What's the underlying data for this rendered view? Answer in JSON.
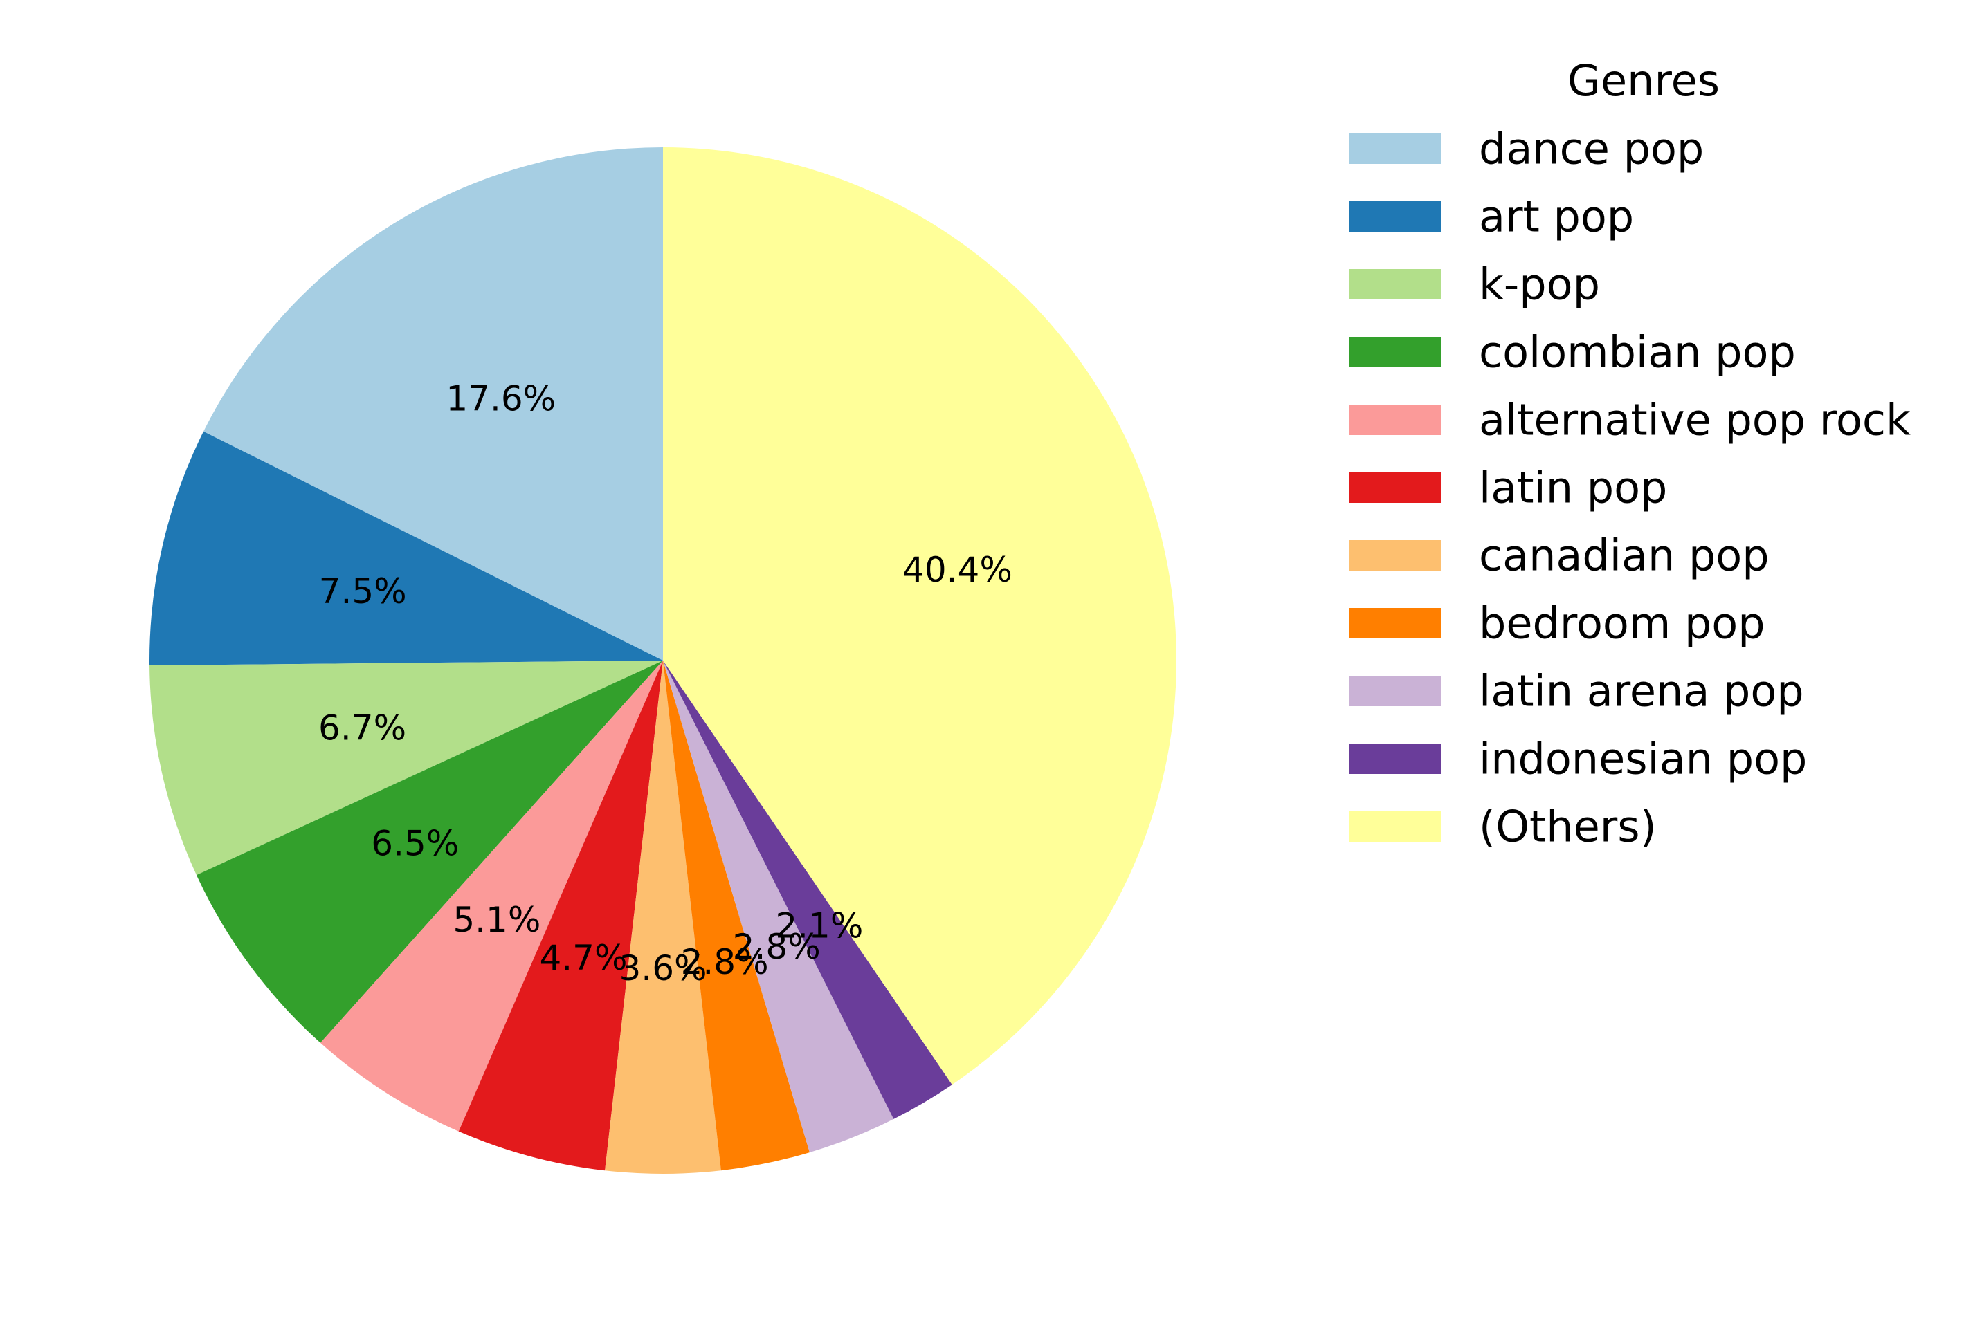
{
  "chart_data": {
    "type": "pie",
    "legend_title": "Genres",
    "legend_position": "right",
    "start_angle_deg": 90,
    "direction": "counterclockwise",
    "slices": [
      {
        "label": "dance pop",
        "value": 17.6,
        "pct_label": "17.6%",
        "color": "#a6cee3"
      },
      {
        "label": "art pop",
        "value": 7.5,
        "pct_label": "7.5%",
        "color": "#1f78b4"
      },
      {
        "label": "k-pop",
        "value": 6.7,
        "pct_label": "6.7%",
        "color": "#b2df8a"
      },
      {
        "label": "colombian pop",
        "value": 6.5,
        "pct_label": "6.5%",
        "color": "#33a02c"
      },
      {
        "label": "alternative pop rock",
        "value": 5.1,
        "pct_label": "5.1%",
        "color": "#fb9a99"
      },
      {
        "label": "latin pop",
        "value": 4.7,
        "pct_label": "4.7%",
        "color": "#e31a1c"
      },
      {
        "label": "canadian pop",
        "value": 3.6,
        "pct_label": "3.6%",
        "color": "#fdbf6f"
      },
      {
        "label": "bedroom pop",
        "value": 2.8,
        "pct_label": "2.8%",
        "color": "#ff7f00"
      },
      {
        "label": "latin arena pop",
        "value": 2.8,
        "pct_label": "2.8%",
        "color": "#cab2d6"
      },
      {
        "label": "indonesian pop",
        "value": 2.1,
        "pct_label": "2.1%",
        "color": "#6a3d9a"
      },
      {
        "label": "(Others)",
        "value": 40.4,
        "pct_label": "40.4%",
        "color": "#ffff99"
      }
    ]
  }
}
